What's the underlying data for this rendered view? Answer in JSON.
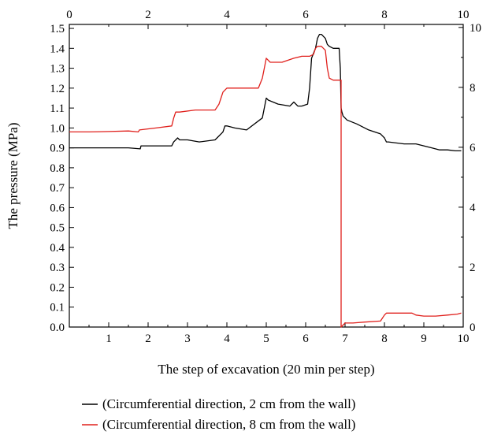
{
  "chart_data": {
    "type": "line",
    "xlabel": "The step of excavation (20 min per step)",
    "ylabel": "The pressure (MPa)",
    "x_bottom": {
      "lim": [
        0,
        10
      ],
      "ticks": [
        1,
        2,
        3,
        4,
        5,
        6,
        7,
        8,
        9,
        10
      ],
      "tick_labels": [
        "1",
        "2",
        "3",
        "4",
        "5",
        "6",
        "7",
        "8",
        "9",
        "10"
      ]
    },
    "x_top": {
      "lim": [
        0,
        10
      ],
      "ticks": [
        0,
        2,
        4,
        6,
        8,
        10
      ],
      "tick_labels": [
        "0",
        "2",
        "4",
        "6",
        "8",
        "10"
      ]
    },
    "y_left": {
      "lim": [
        0,
        1.52
      ],
      "ticks": [
        0.0,
        0.1,
        0.2,
        0.3,
        0.4,
        0.5,
        0.6,
        0.7,
        0.8,
        0.9,
        1.0,
        1.1,
        1.2,
        1.3,
        1.4,
        1.5
      ],
      "tick_labels": [
        "0.0",
        "0.1",
        "0.2",
        "0.3",
        "0.4",
        "0.5",
        "0.6",
        "0.7",
        "0.8",
        "0.9",
        "1.0",
        "1.1",
        "1.2",
        "1.3",
        "1.4",
        "1.5"
      ]
    },
    "y_right": {
      "lim": [
        0,
        10.1
      ],
      "ticks": [
        0,
        2,
        4,
        6,
        8,
        10
      ],
      "tick_labels": [
        "0",
        "2",
        "4",
        "6",
        "8",
        "10"
      ]
    },
    "grid": false,
    "legend_position": "bottom",
    "series": [
      {
        "name": "(Circumferential direction, 2 cm from the wall)",
        "color": "#000000",
        "x": [
          0.0,
          0.5,
          1.0,
          1.5,
          1.8,
          1.82,
          2.2,
          2.6,
          2.65,
          2.75,
          2.8,
          3.0,
          3.3,
          3.7,
          3.8,
          3.9,
          3.95,
          4.0,
          4.2,
          4.5,
          4.9,
          4.95,
          5.0,
          5.05,
          5.3,
          5.6,
          5.7,
          5.8,
          5.9,
          6.05,
          6.1,
          6.15,
          6.25,
          6.3,
          6.35,
          6.4,
          6.5,
          6.55,
          6.6,
          6.7,
          6.85,
          6.88,
          6.9,
          6.92,
          6.95,
          7.05,
          7.3,
          7.6,
          7.9,
          8.0,
          8.05,
          8.1,
          8.5,
          8.8,
          9.0,
          9.2,
          9.4,
          9.6,
          9.8,
          9.95
        ],
        "y": [
          0.9,
          0.9,
          0.9,
          0.9,
          0.895,
          0.91,
          0.91,
          0.91,
          0.93,
          0.95,
          0.94,
          0.94,
          0.93,
          0.94,
          0.96,
          0.98,
          1.01,
          1.01,
          1.0,
          0.99,
          1.05,
          1.1,
          1.15,
          1.14,
          1.12,
          1.11,
          1.13,
          1.11,
          1.11,
          1.12,
          1.2,
          1.35,
          1.4,
          1.45,
          1.47,
          1.47,
          1.45,
          1.42,
          1.41,
          1.4,
          1.4,
          1.3,
          1.1,
          1.08,
          1.06,
          1.04,
          1.02,
          0.99,
          0.97,
          0.95,
          0.93,
          0.93,
          0.92,
          0.92,
          0.91,
          0.9,
          0.89,
          0.89,
          0.885,
          0.885
        ]
      },
      {
        "name": "(Circumferential direction, 8 cm from the wall)",
        "color": "#e0201c",
        "x": [
          0.0,
          0.5,
          1.0,
          1.5,
          1.75,
          1.78,
          2.2,
          2.6,
          2.65,
          2.7,
          2.8,
          3.2,
          3.7,
          3.8,
          3.85,
          3.9,
          4.0,
          4.3,
          4.8,
          4.9,
          4.95,
          5.0,
          5.1,
          5.4,
          5.7,
          5.9,
          6.1,
          6.2,
          6.25,
          6.3,
          6.4,
          6.5,
          6.55,
          6.6,
          6.7,
          6.9,
          6.9,
          6.95,
          7.0,
          7.2,
          7.5,
          7.9,
          8.0,
          8.05,
          8.3,
          8.7,
          8.8,
          9.0,
          9.3,
          9.6,
          9.85,
          9.95
        ],
        "y": [
          0.98,
          0.98,
          0.982,
          0.985,
          0.98,
          0.99,
          1.0,
          1.01,
          1.05,
          1.08,
          1.08,
          1.09,
          1.09,
          1.12,
          1.15,
          1.18,
          1.2,
          1.2,
          1.2,
          1.25,
          1.3,
          1.35,
          1.33,
          1.33,
          1.35,
          1.36,
          1.36,
          1.37,
          1.4,
          1.41,
          1.41,
          1.39,
          1.3,
          1.25,
          1.24,
          1.24,
          0.0,
          0.01,
          0.02,
          0.02,
          0.025,
          0.03,
          0.06,
          0.07,
          0.07,
          0.07,
          0.06,
          0.055,
          0.055,
          0.06,
          0.065,
          0.07
        ]
      }
    ]
  }
}
